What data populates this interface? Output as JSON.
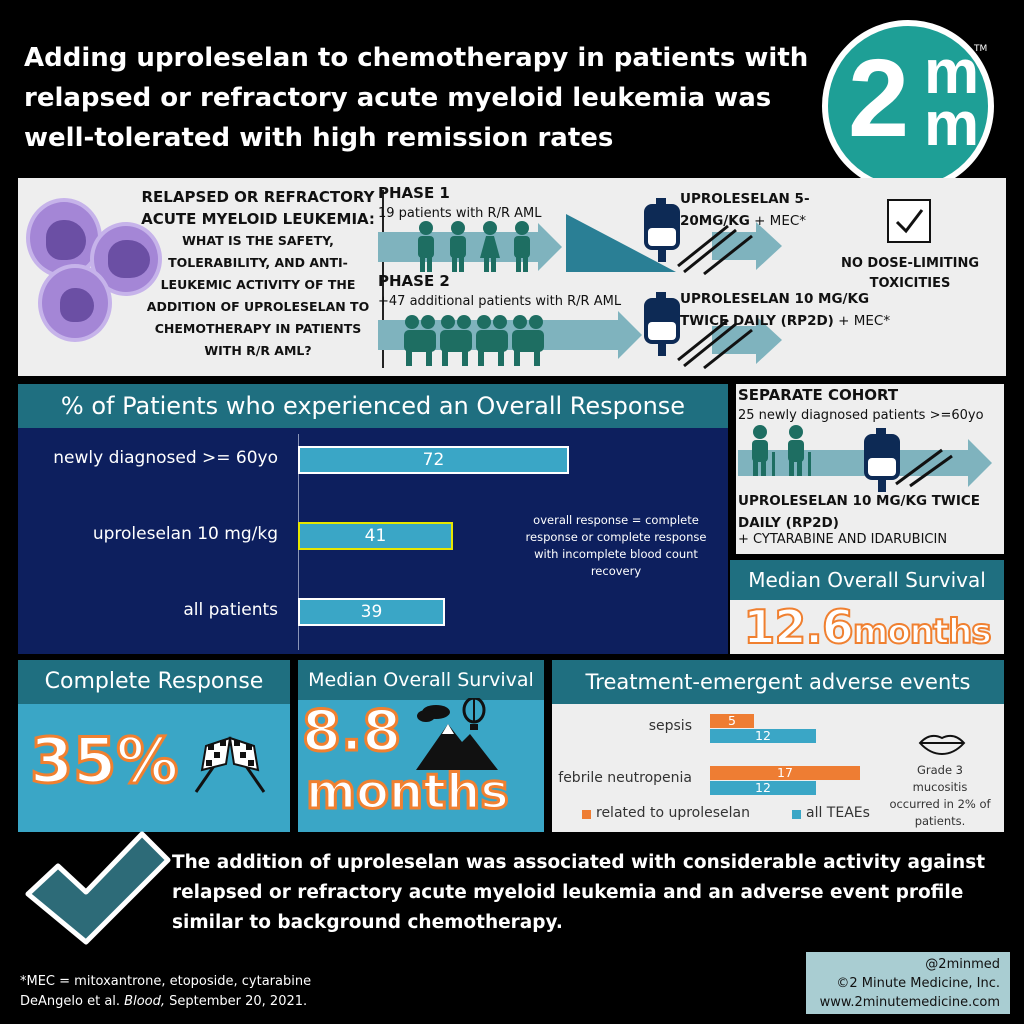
{
  "header": {
    "title": "Adding uproleselan to chemotherapy in patients with relapsed or refractory acute myeloid leukemia was well-tolerated with high remission rates",
    "logo": {
      "two": "2",
      "m_top": "m",
      "m_bottom": "m",
      "tm": "TM"
    }
  },
  "question": {
    "heading": "RELAPSED OR REFRACTORY ACUTE MYELOID LEUKEMIA:",
    "body": "WHAT IS THE SAFETY, TOLERABILITY, AND ANTI-LEUKEMIC ACTIVITY OF THE ADDITION OF UPROLESELAN TO CHEMOTHERAPY IN PATIENTS WITH R/R AML?"
  },
  "phase1": {
    "title": "PHASE 1",
    "desc": "19 patients with R/R AML",
    "drug": "UPROLESELAN 5-20MG/KG",
    "drug_suffix": " + MEC*"
  },
  "phase2": {
    "title": "PHASE 2",
    "desc": "+47 additional patients with R/R AML",
    "drug": "UPROLESELAN 10 MG/KG TWICE DAILY (RP2D)",
    "drug_suffix": " + MEC*"
  },
  "safety": {
    "label": "NO DOSE-LIMITING TOXICITIES"
  },
  "response_chart": {
    "title": "% of Patients who experienced an Overall Response",
    "note": "overall response = complete response or complete response with incomplete blood count recovery"
  },
  "chart_data": {
    "type": "bar",
    "orientation": "horizontal",
    "categories": [
      "newly diagnosed >= 60yo",
      "uproleselan 10 mg/kg",
      "all patients"
    ],
    "values": [
      72,
      41,
      39
    ],
    "title": "% of Patients who experienced an Overall Response",
    "highlight": "uproleselan 10 mg/kg"
  },
  "cohort": {
    "title": "SEPARATE COHORT",
    "desc": "25 newly diagnosed patients >=60yo",
    "drug": "UPROLESELAN 10 MG/KG TWICE DAILY (RP2D)",
    "drug_suffix": "+ CYTARABINE AND IDARUBICIN",
    "mos_label": "Median Overall Survival",
    "mos_value": "12.6",
    "mos_unit": "months"
  },
  "complete_response": {
    "label": "Complete Response",
    "value": "35%"
  },
  "median_os": {
    "label": "Median Overall Survival",
    "value": "8.8",
    "unit": "months"
  },
  "adverse_events": {
    "title": "Treatment-emergent adverse events",
    "categories": [
      "sepsis",
      "febrile neutropenia"
    ],
    "related": [
      5,
      17
    ],
    "all": [
      12,
      12
    ],
    "legend_related": "related to uproleselan",
    "legend_all": "all TEAEs",
    "note": "Grade 3 mucositis occurred in 2% of patients.",
    "colors": {
      "related": "#ee7d33",
      "all": "#3aa6c6"
    }
  },
  "conclusion": "The addition of uproleselan was associated with considerable activity against relapsed or refractory acute myeloid leukemia and an adverse event profile similar to background chemotherapy.",
  "footer": {
    "mec": "*MEC = mitoxantrone, etoposide, cytarabine",
    "citation_pre": "DeAngelo et al. ",
    "citation_journal": "Blood,",
    "citation_post": " September 20, 2021.",
    "handle": "@2minmed",
    "copyright": "©2 Minute Medicine, Inc.",
    "website": "www.2minutemedicine.com"
  },
  "colors": {
    "teal_dark": "#1f6f80",
    "teal_light": "#3aa6c6",
    "navy": "#0d1f5e",
    "orange": "#f08030"
  }
}
